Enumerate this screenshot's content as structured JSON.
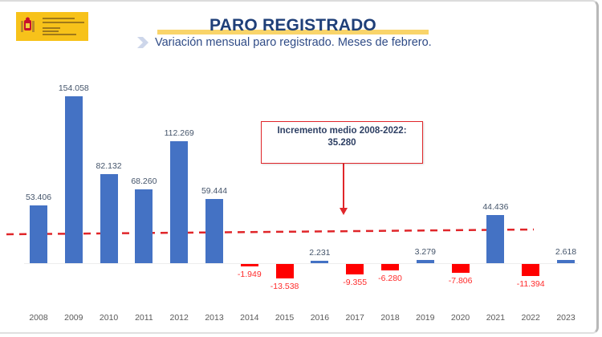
{
  "header": {
    "logo": {
      "lines": [
        "VICEPRESIDENCIA",
        "SEGUNDA DEL GOBIERNO",
        "MINISTERIO",
        "DE TRABAJO",
        "Y ECONOMÍA SOCIAL"
      ],
      "icon": "spain-coat-of-arms-icon"
    },
    "title": "PARO REGISTRADO",
    "subtitle": "Variación mensual paro registrado. Meses de febrero."
  },
  "annotation": {
    "line1": "Incremento medio 2008-2022:",
    "line2": "35.280"
  },
  "colors": {
    "positive": "#4472c4",
    "negative": "#ff0000",
    "mean_line": "#e0262a",
    "title": "#1f3f78",
    "title_highlight": "#f9d46a"
  },
  "chart_data": {
    "type": "bar",
    "title": "PARO REGISTRADO",
    "subtitle": "Variación mensual paro registrado. Meses de febrero.",
    "xlabel": "",
    "ylabel": "",
    "categories": [
      "2008",
      "2009",
      "2010",
      "2011",
      "2012",
      "2013",
      "2014",
      "2015",
      "2016",
      "2017",
      "2018",
      "2019",
      "2020",
      "2021",
      "2022",
      "2023"
    ],
    "values": [
      53406,
      154058,
      82132,
      68260,
      112269,
      59444,
      -1949,
      -13538,
      2231,
      -9355,
      -6280,
      3279,
      -7806,
      44436,
      -11394,
      2618
    ],
    "labels": [
      "53.406",
      "154.058",
      "82.132",
      "68.260",
      "112.269",
      "59.444",
      "-1.949",
      "-13.538",
      "2.231",
      "-9.355",
      "-6.280",
      "3.279",
      "-7.806",
      "44.436",
      "-11.394",
      "2.618"
    ],
    "reference_line": {
      "label": "Incremento medio 2008-2022",
      "value": 35280,
      "value_label": "35.280",
      "style": "dashed",
      "color": "#e0262a"
    },
    "grid": false,
    "legend": "none",
    "colors": {
      "positive": "#4472c4",
      "negative": "#ff0000"
    }
  }
}
